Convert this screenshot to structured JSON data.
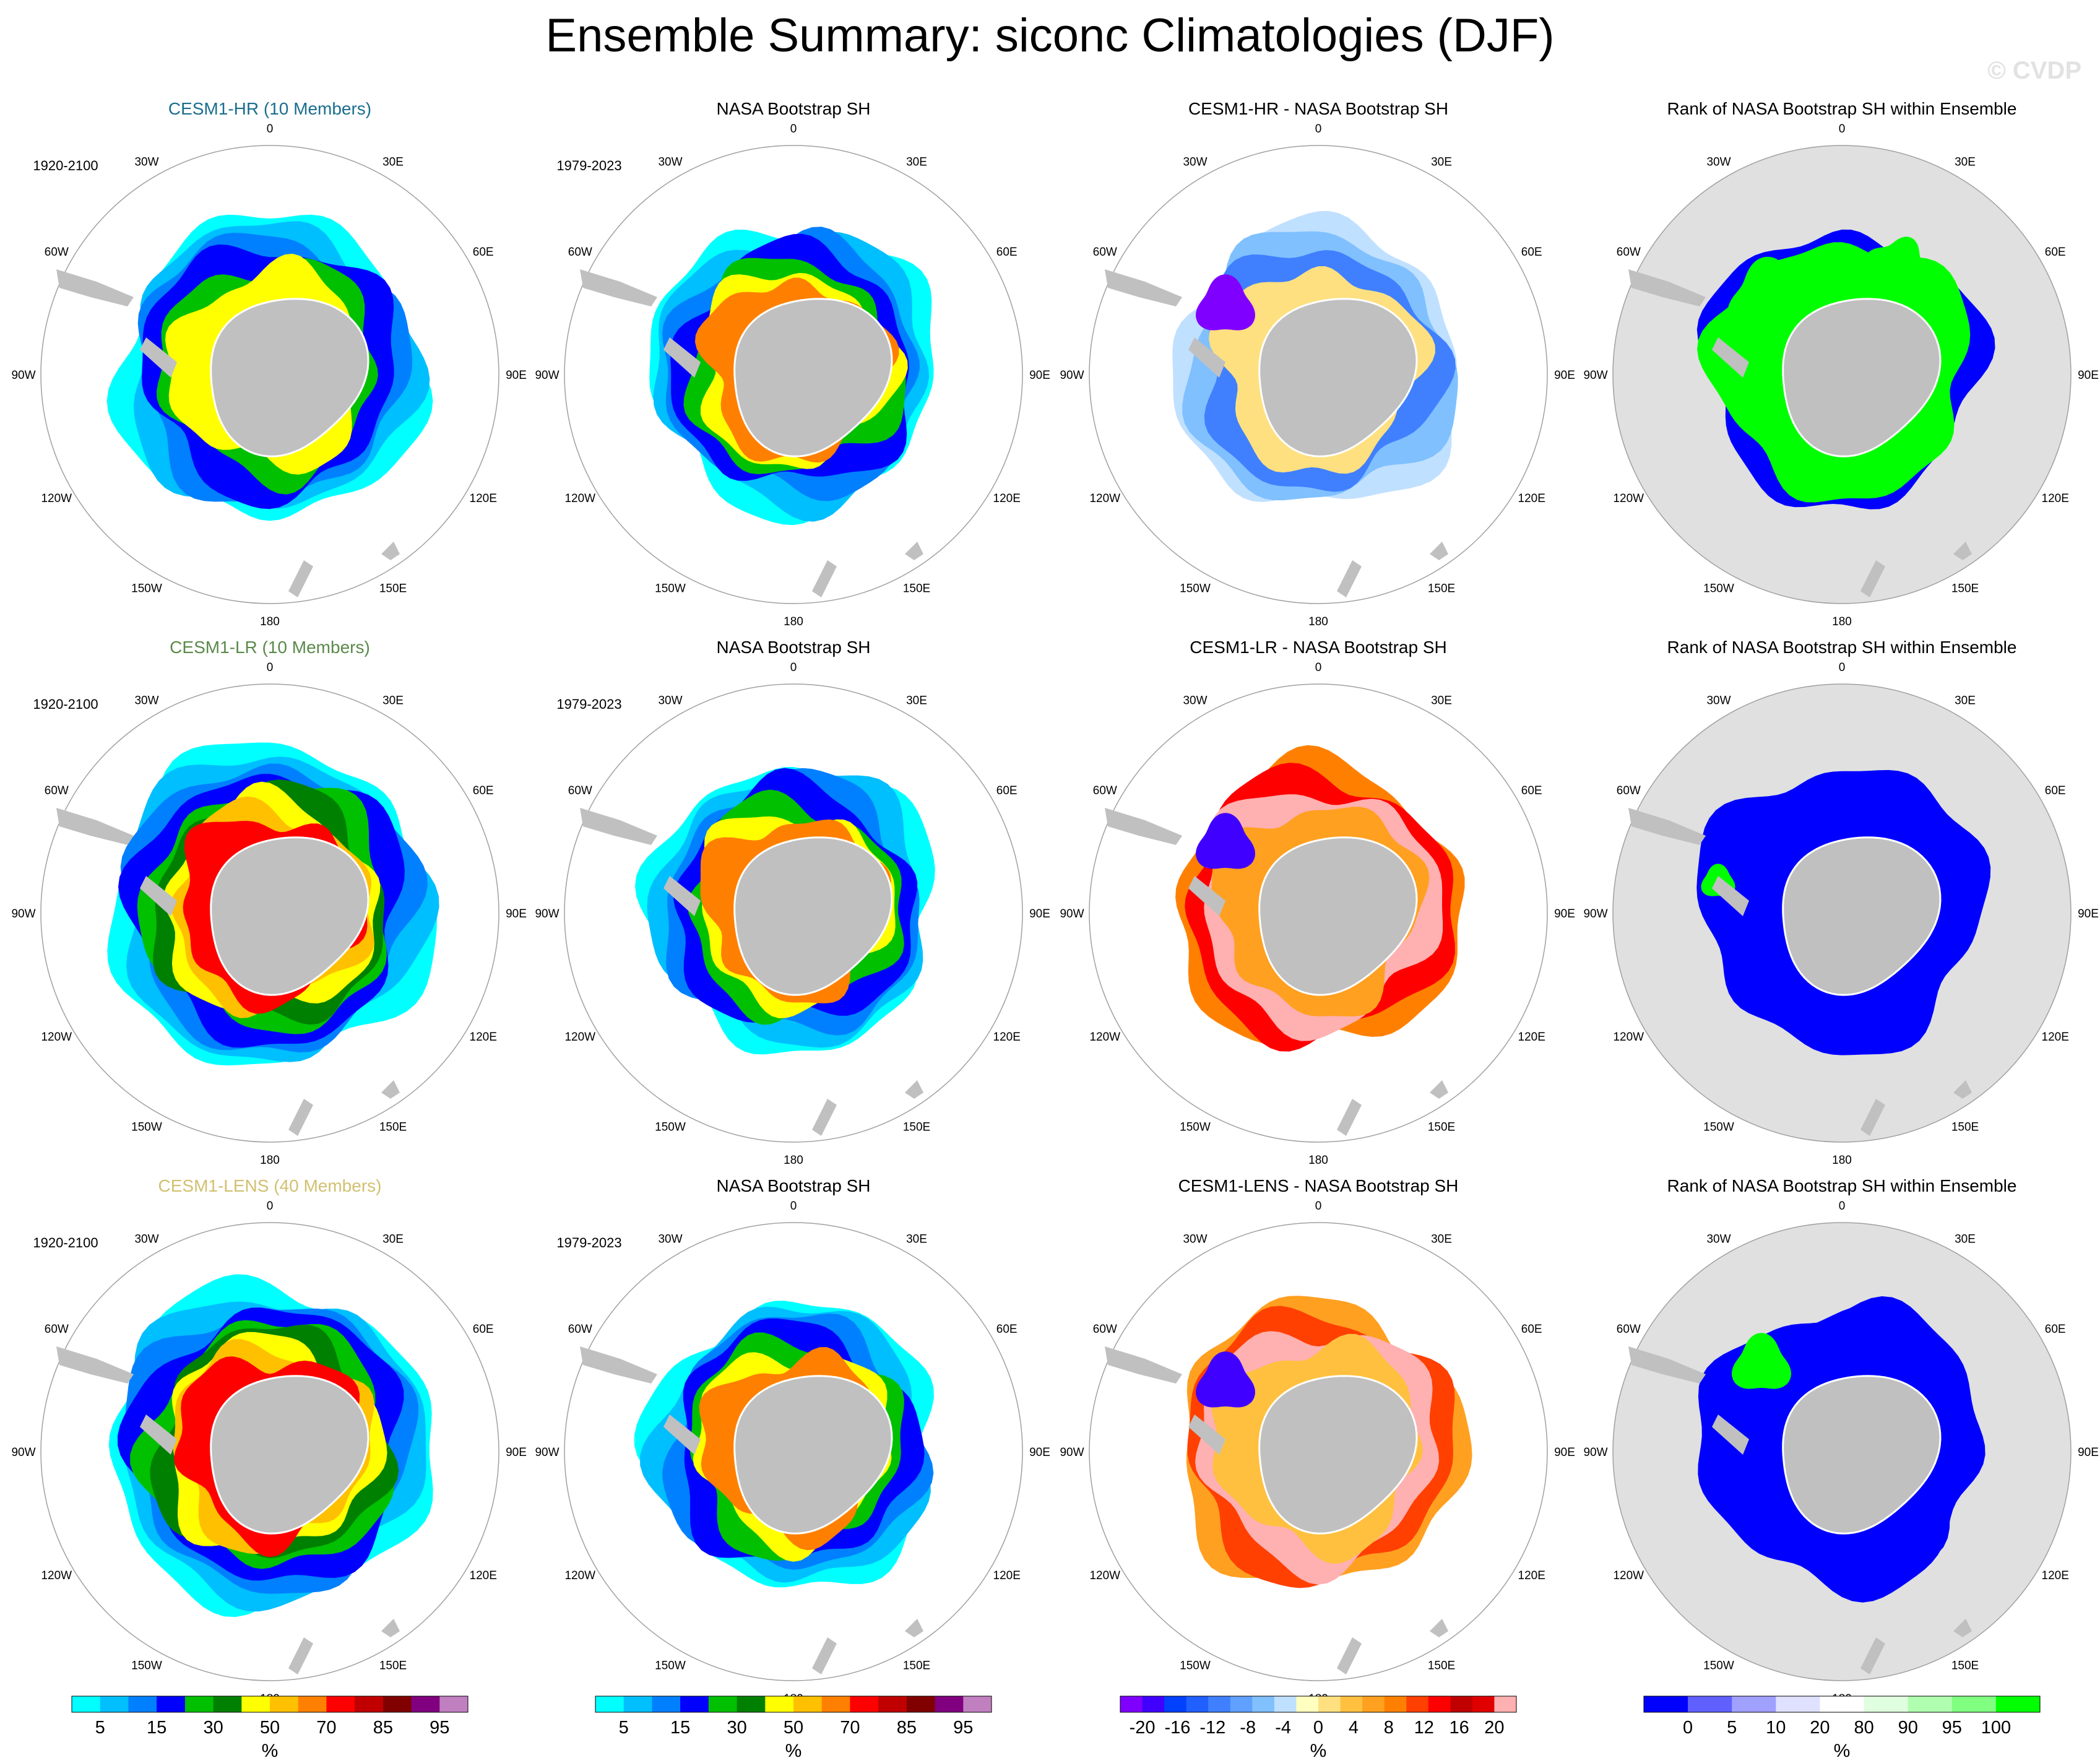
{
  "title": "Ensemble Summary: siconc Climatologies (DJF)",
  "watermark": "© CVDP",
  "lon_labels": [
    "0",
    "30E",
    "60E",
    "90E",
    "120E",
    "150E",
    "180",
    "150W",
    "120W",
    "90W",
    "60W",
    "30W"
  ],
  "colors": {
    "land": "#c0c0c0",
    "ocean_gray": "#e0e0e0",
    "title_hr": "#1a6e8e",
    "title_lr": "#5a8a4a",
    "title_lens": "#d2c070"
  },
  "chart_data": [
    {
      "type": "heatmap",
      "projection": "south-polar-stereographic",
      "row_titles": [
        {
          "text": "CESM1-HR (10 Members)",
          "color": "#1a6e8e"
        },
        {
          "text": "CESM1-LR (10 Members)",
          "color": "#5a8a4a"
        },
        {
          "text": "CESM1-LENS (40 Members)",
          "color": "#d2c070"
        }
      ],
      "column_titles": [
        [
          "CESM1-HR (10 Members)",
          "NASA Bootstrap SH",
          "CESM1-HR - NASA Bootstrap SH",
          "Rank of NASA Bootstrap SH within Ensemble"
        ],
        [
          "CESM1-LR (10 Members)",
          "NASA Bootstrap SH",
          "CESM1-LR - NASA Bootstrap SH",
          "Rank of NASA Bootstrap SH within Ensemble"
        ],
        [
          "CESM1-LENS (40 Members)",
          "NASA Bootstrap SH",
          "CESM1-LENS - NASA Bootstrap SH",
          "Rank of NASA Bootstrap SH within Ensemble"
        ]
      ],
      "periods": [
        [
          "1920-2100",
          "1979-2023"
        ],
        [
          "1920-2100",
          "1979-2023"
        ],
        [
          "1920-2100",
          "1979-2023"
        ]
      ]
    }
  ],
  "colorbars": [
    {
      "name": "siconc",
      "unit": "%",
      "colors": [
        "#00ffff",
        "#00bfff",
        "#0080ff",
        "#0000ff",
        "#00c000",
        "#008000",
        "#ffff00",
        "#ffc000",
        "#ff8000",
        "#ff0000",
        "#c00000",
        "#800000",
        "#800080",
        "#c080c0"
      ],
      "ticks": [
        "5",
        "15",
        "30",
        "50",
        "70",
        "85",
        "95"
      ]
    },
    {
      "name": "siconc-obs",
      "unit": "%",
      "colors": [
        "#00ffff",
        "#00bfff",
        "#0080ff",
        "#0000ff",
        "#00c000",
        "#008000",
        "#ffff00",
        "#ffc000",
        "#ff8000",
        "#ff0000",
        "#c00000",
        "#800000",
        "#800080",
        "#c080c0"
      ],
      "ticks": [
        "5",
        "15",
        "30",
        "50",
        "70",
        "85",
        "95"
      ]
    },
    {
      "name": "difference",
      "unit": "%",
      "colors": [
        "#8000ff",
        "#4000ff",
        "#0040ff",
        "#2060ff",
        "#4080ff",
        "#60a0ff",
        "#80c0ff",
        "#c0e0ff",
        "#ffffc0",
        "#ffe080",
        "#ffc040",
        "#ffa020",
        "#ff8000",
        "#ff4000",
        "#ff0000",
        "#c00000",
        "#e00000",
        "#ffb0b0"
      ],
      "ticks": [
        "-20",
        "-16",
        "-12",
        "-8",
        "-4",
        "0",
        "4",
        "8",
        "12",
        "16",
        "20"
      ]
    },
    {
      "name": "rank",
      "unit": "%",
      "colors": [
        "#0000ff",
        "#6060ff",
        "#a0a0ff",
        "#e0e0ff",
        "#ffffff",
        "#e0ffe0",
        "#b0ffb0",
        "#80ff80",
        "#00ff00"
      ],
      "ticks": [
        "0",
        "5",
        "10",
        "20",
        "80",
        "90",
        "95",
        "100"
      ]
    }
  ]
}
